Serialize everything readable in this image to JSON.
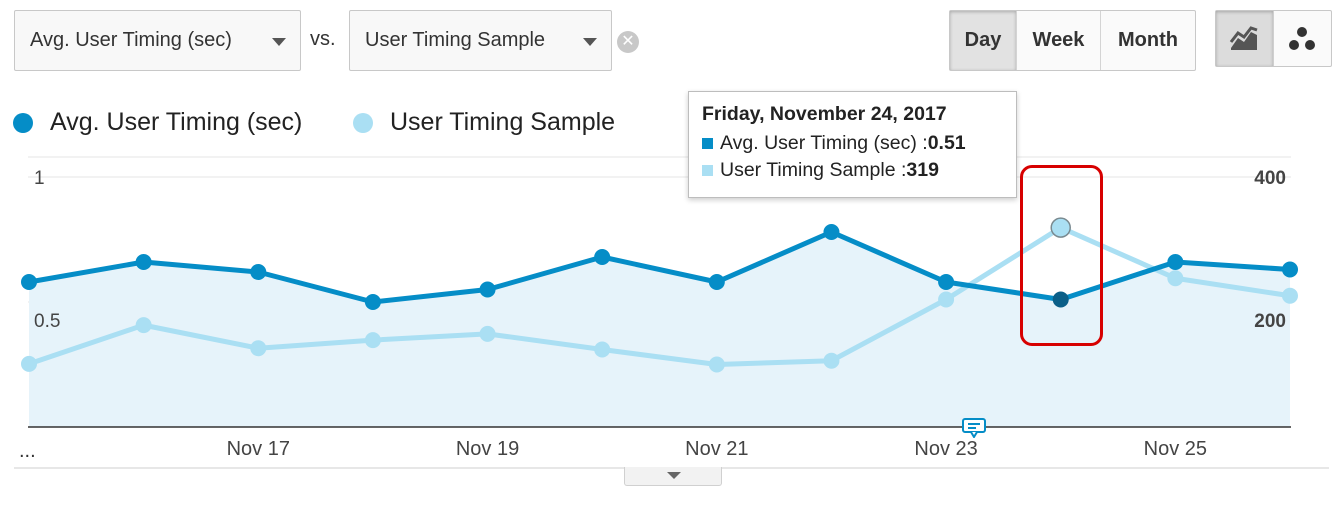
{
  "controls": {
    "primary_metric": "Avg. User Timing (sec)",
    "vs_label": "vs.",
    "secondary_metric": "User Timing Sample",
    "periods": [
      "Day",
      "Week",
      "Month"
    ],
    "active_period": "Day",
    "view_icons": [
      "line-chart-icon",
      "motion-chart-icon"
    ],
    "ellipsis": "..."
  },
  "colors": {
    "series_primary": "#058dc7",
    "series_secondary": "#aadff3",
    "area_fill": "#e6f3fa",
    "highlight": "#d70000"
  },
  "tooltip": {
    "title": "Friday, November 24, 2017",
    "rows": [
      {
        "label": "Avg. User Timing (sec) : ",
        "value": "0.51"
      },
      {
        "label": "User Timing Sample : ",
        "value": "319"
      }
    ]
  },
  "chart_data": {
    "type": "line",
    "x": [
      "Nov 15",
      "Nov 16",
      "Nov 17",
      "Nov 18",
      "Nov 19",
      "Nov 20",
      "Nov 21",
      "Nov 22",
      "Nov 23",
      "Nov 24",
      "Nov 25",
      "Nov 26"
    ],
    "x_tick_labels": [
      "Nov 17",
      "Nov 19",
      "Nov 21",
      "Nov 23",
      "Nov 25"
    ],
    "series": [
      {
        "name": "Avg. User Timing (sec)",
        "axis": "left",
        "values": [
          0.58,
          0.66,
          0.62,
          0.5,
          0.55,
          0.68,
          0.58,
          0.78,
          0.58,
          0.51,
          0.66,
          0.63
        ]
      },
      {
        "name": "User Timing Sample",
        "axis": "right",
        "values": [
          101,
          163,
          126,
          139,
          149,
          124,
          100,
          106,
          204,
          319,
          238,
          210
        ]
      }
    ],
    "y_left": {
      "ticks": [
        "1",
        "0.5"
      ],
      "range": [
        0,
        1
      ]
    },
    "y_right": {
      "ticks": [
        "400",
        "200"
      ],
      "range": [
        0,
        400
      ]
    },
    "highlight_index": 9,
    "grid": true
  }
}
